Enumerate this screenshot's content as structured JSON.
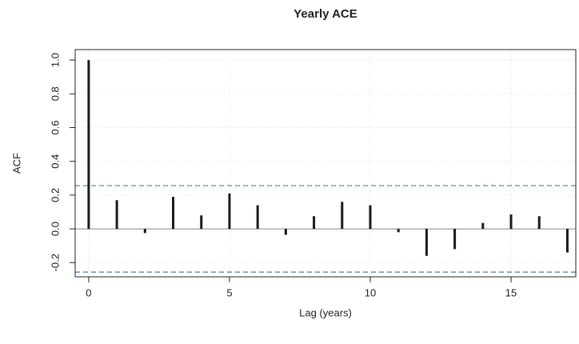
{
  "chart_data": {
    "type": "bar",
    "title": "Yearly ACE",
    "xlabel": "Lag (years)",
    "ylabel": "ACF",
    "x": [
      0,
      1,
      2,
      3,
      4,
      5,
      6,
      7,
      8,
      9,
      10,
      11,
      12,
      13,
      14,
      15,
      16,
      17
    ],
    "values": [
      1.0,
      0.17,
      -0.025,
      0.19,
      0.08,
      0.21,
      0.14,
      -0.035,
      0.075,
      0.16,
      0.14,
      -0.02,
      -0.16,
      -0.12,
      0.035,
      0.085,
      0.075,
      -0.14
    ],
    "color": "#1a1a1a",
    "ci_lines": {
      "values": [
        0.256,
        -0.256
      ],
      "color": "#4a7aa8"
    },
    "xlim": [
      -0.48,
      17.3
    ],
    "ylim": [
      -0.284,
      1.062
    ],
    "xticks": [
      0,
      5,
      10,
      15
    ],
    "yticks": [
      -0.2,
      {
        "value": 0,
        "label": "0.0"
      },
      0.2,
      0.4,
      0.6,
      0.8,
      {
        "value": 1,
        "label": "1.0"
      }
    ],
    "grid": true
  }
}
